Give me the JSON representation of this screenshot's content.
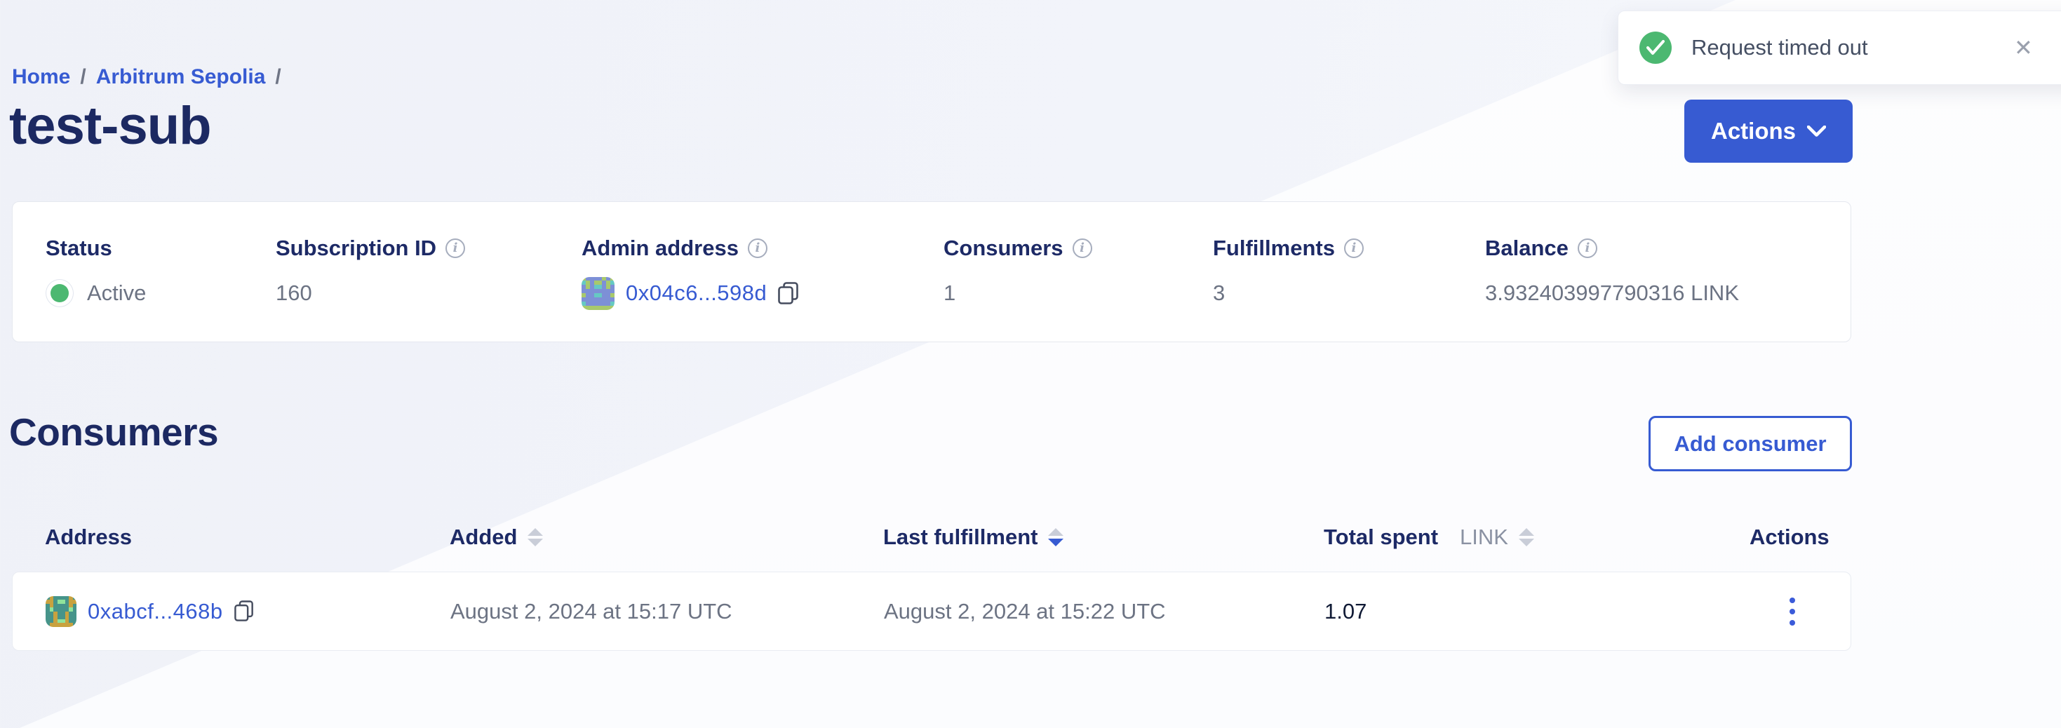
{
  "toast": {
    "message": "Request timed out",
    "close_glyph": "✕"
  },
  "breadcrumb": {
    "separator": "/",
    "items": [
      {
        "label": "Home"
      },
      {
        "label": "Arbitrum Sepolia"
      }
    ]
  },
  "page": {
    "title": "test-sub"
  },
  "actions_button": {
    "label": "Actions"
  },
  "summary": {
    "fields": [
      {
        "label": "Status",
        "value": "Active"
      },
      {
        "label": "Subscription ID",
        "value": "160"
      },
      {
        "label": "Admin address",
        "value": "0x04c6...598d"
      },
      {
        "label": "Consumers",
        "value": "1"
      },
      {
        "label": "Fulfillments",
        "value": "3"
      },
      {
        "label": "Balance",
        "value": "3.932403997790316 LINK"
      }
    ]
  },
  "consumers_section": {
    "title": "Consumers",
    "add_button_label": "Add consumer"
  },
  "table": {
    "columns": [
      {
        "label": "Address"
      },
      {
        "label": "Added"
      },
      {
        "label": "Last fulfillment"
      },
      {
        "label": "Total spent",
        "unit": "LINK"
      },
      {
        "label": "Actions"
      }
    ],
    "rows": [
      {
        "address": "0xabcf...468b",
        "added": "August 2, 2024 at 15:17 UTC",
        "last_fulfillment": "August 2, 2024 at 15:22 UTC",
        "total_spent": "1.07"
      }
    ]
  },
  "avatars": {
    "admin": {
      "palette": {
        "b": "#7d90d6",
        "g": "#a8c96c",
        "t": "#66c9c3"
      },
      "pixels": "gbbbbgbgtgbggbgtbgbttbgbbbbbbbbbgbbttbbgbbbbbbbbtbbbbbbtgggggggg"
    },
    "consumer": {
      "palette": {
        "t": "#46948a",
        "g": "#c8a23f",
        "l": "#8fe39b"
      },
      "pixels": "tgttttgtggtlltggtgttttgttlttttltttgttgttttgttgttttgllgtttggggggt"
    }
  },
  "colors": {
    "accent_blue": "#375bd2",
    "navy": "#1d2a66",
    "text_gray": "#6c7383",
    "green": "#4cb871"
  }
}
